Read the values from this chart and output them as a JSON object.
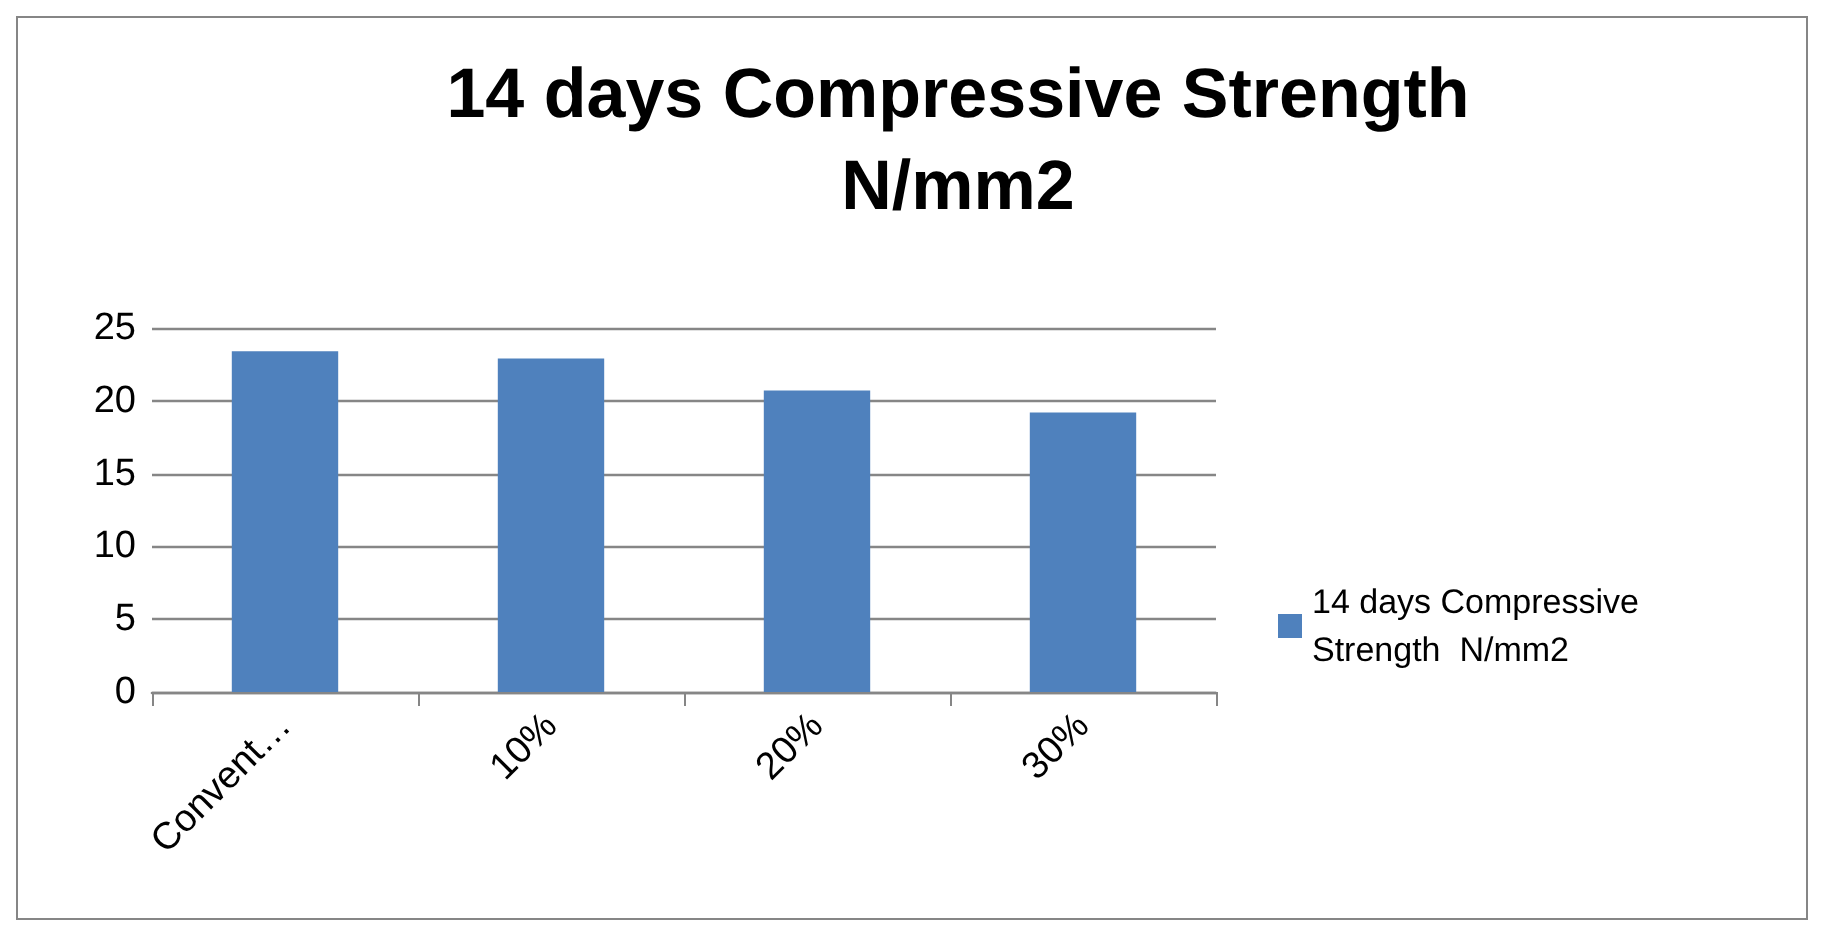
{
  "chart_data": {
    "type": "bar",
    "title": "14 days Compressive Strength\nN/mm2",
    "categories": [
      "Convent…",
      "10%",
      "20%",
      "30%"
    ],
    "series": [
      {
        "name": "14 days Compressive\nStrength  N/mm2",
        "color": "#4f81bd",
        "values": [
          23.4,
          22.9,
          20.7,
          19.2
        ]
      }
    ],
    "ylim": [
      0,
      25
    ],
    "yticks": [
      0,
      5,
      10,
      15,
      20,
      25
    ],
    "grid": "y",
    "legend": "right"
  }
}
